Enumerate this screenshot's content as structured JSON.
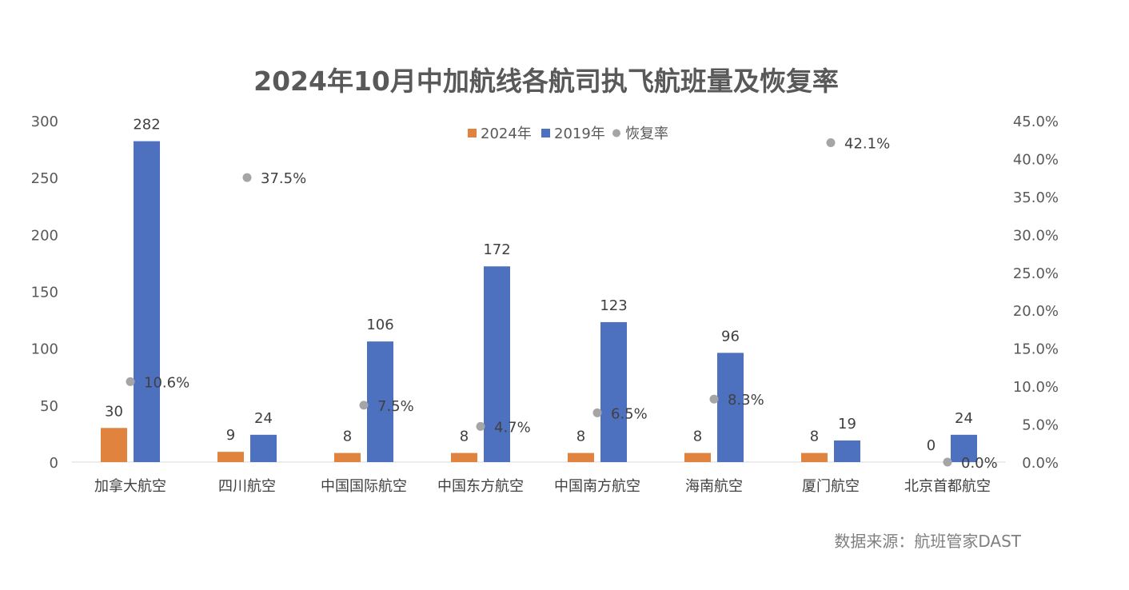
{
  "chart_data": {
    "type": "bar",
    "title": "2024年10月中加航线各航司执飞航班量及恢复率",
    "categories": [
      "加拿大航空",
      "四川航空",
      "中国国际航空",
      "中国东方航空",
      "中国南方航空",
      "海南航空",
      "厦门航空",
      "北京首都航空"
    ],
    "series": [
      {
        "name": "2024年",
        "values": [
          30,
          9,
          8,
          8,
          8,
          8,
          8,
          0
        ],
        "labels": [
          "30",
          "9",
          "8",
          "8",
          "8",
          "8",
          "8",
          "0"
        ],
        "color": "#E0833F",
        "axis": "left"
      },
      {
        "name": "2019年",
        "values": [
          282,
          24,
          106,
          172,
          123,
          96,
          19,
          24
        ],
        "labels": [
          "282",
          "24",
          "106",
          "172",
          "123",
          "96",
          "19",
          "24"
        ],
        "color": "#4E71BF",
        "axis": "left"
      },
      {
        "name": "恢复率",
        "type": "scatter",
        "values": [
          10.6,
          37.5,
          7.5,
          4.7,
          6.5,
          8.3,
          42.1,
          0.0
        ],
        "labels": [
          "10.6%",
          "37.5%",
          "7.5%",
          "4.7%",
          "6.5%",
          "8.3%",
          "42.1%",
          "0.0%"
        ],
        "color": "#A5A5A5",
        "axis": "right"
      }
    ],
    "left_axis": {
      "min": 0,
      "max": 300,
      "ticks": [
        "0",
        "50",
        "100",
        "150",
        "200",
        "250",
        "300"
      ]
    },
    "right_axis": {
      "min": 0,
      "max": 45,
      "ticks": [
        "0.0%",
        "5.0%",
        "10.0%",
        "15.0%",
        "20.0%",
        "25.0%",
        "30.0%",
        "35.0%",
        "40.0%",
        "45.0%"
      ]
    },
    "legend": {
      "position": "top-center",
      "items": [
        "2024年",
        "2019年",
        "恢复率"
      ]
    },
    "grid": false
  },
  "source_note": "数据来源：航班管家DAST"
}
